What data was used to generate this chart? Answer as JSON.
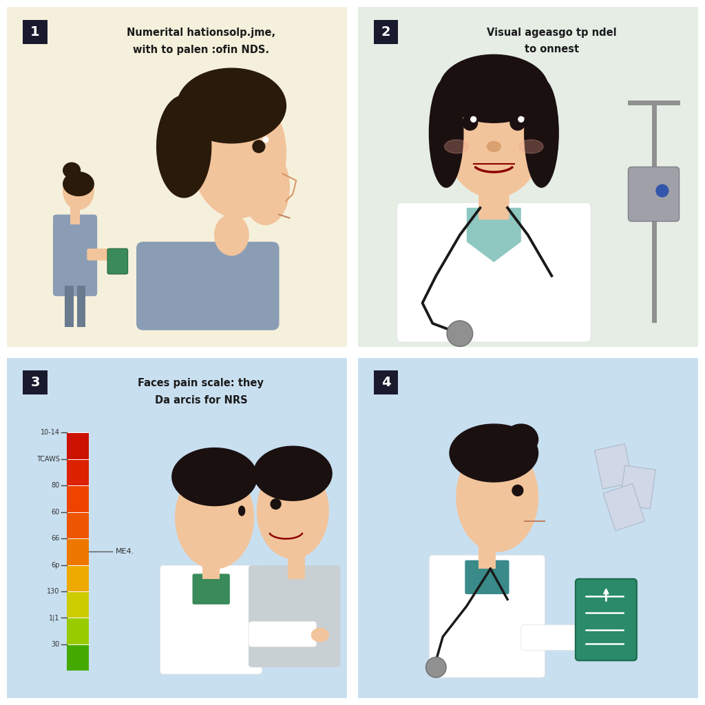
{
  "bg_color": "#FFFFFF",
  "gap_color": "#FFFFFF",
  "panel1": {
    "bg_color": "#F5F0DC",
    "number": "1",
    "number_bg": "#1a1a2e",
    "title_line1": "Numerital hationsolp.jme,",
    "title_line2": "with to palen :ofin NDS.",
    "text_color": "#1a1a1a",
    "skin_color": "#F2C49B",
    "hair_color": "#2a1a0a",
    "scrub_color": "#8A9DB5",
    "tablet_color": "#3A8A5A"
  },
  "panel2": {
    "bg_color": "#E5EDE5",
    "number": "2",
    "number_bg": "#1a1a2e",
    "title_line1": "Visual ageasgo tp ndel",
    "title_line2": "to onnest",
    "text_color": "#1a1a1a",
    "skin_color": "#F2C49B",
    "hair_color": "#1a1010",
    "coat_color": "#FFFFFF",
    "scrub_color": "#8EC8C0",
    "pole_color": "#909090",
    "device_color": "#A0A0A8"
  },
  "panel3": {
    "bg_color": "#C8DFF0",
    "number": "3",
    "number_bg": "#1a1a2e",
    "title_line1": "Faces pain scale: they",
    "title_line2": "Da arcis for NRS",
    "text_color": "#1a1a1a",
    "scale_labels": [
      "10-14",
      "TCAWS",
      "80",
      "60",
      "66",
      "6p",
      "130",
      "1|1",
      "30"
    ],
    "scale_colors": [
      "#CC1100",
      "#DD2200",
      "#EE4400",
      "#EE5500",
      "#EE7700",
      "#EEAA00",
      "#CCCC00",
      "#99CC00",
      "#44AA00"
    ],
    "med_label": "ME4.",
    "skin_color": "#F2C49B",
    "hair_color": "#1a1010",
    "coat_color": "#FFFFFF",
    "scrub_color": "#3A8A5A",
    "patient_skin": "#F2C49B",
    "patient_body": "#C8D0D4"
  },
  "panel4": {
    "bg_color": "#C8DFF0",
    "number": "4",
    "number_bg": "#1a1a2e",
    "text_color": "#1a1a1a",
    "skin_color": "#F2C49B",
    "hair_color": "#1a1010",
    "coat_color": "#FFFFFF",
    "scrub_color": "#3A8A8A",
    "tablet_color": "#2A8A6A",
    "paper_color": "#D0D8E8"
  }
}
